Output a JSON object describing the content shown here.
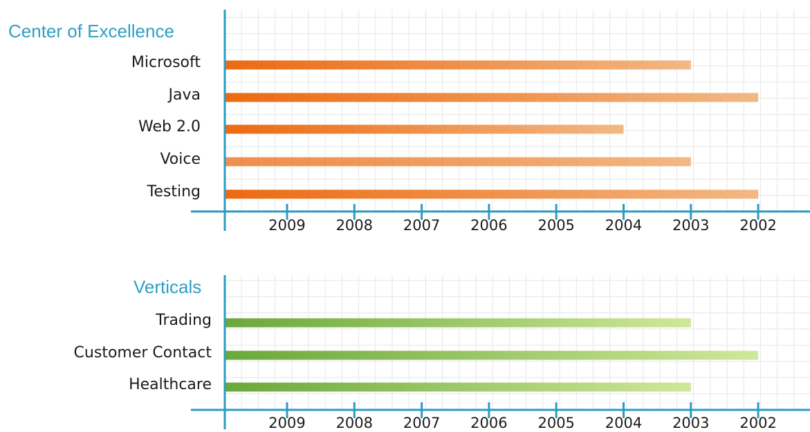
{
  "colors": {
    "axis": "#2a9bc4",
    "grid": "#e6e6e6",
    "title": "#2e9fc4",
    "orange_dark": "#ec6a12",
    "orange_light": "#f3b884",
    "green_dark": "#6aa83a",
    "green_light": "#cfe89a"
  },
  "chart_data": [
    {
      "type": "bar",
      "orientation": "horizontal",
      "title": "Center of Excellence",
      "x_axis_ticks": [
        "2009",
        "2008",
        "2007",
        "2006",
        "2005",
        "2004",
        "2003",
        "2002"
      ],
      "x_axis_direction": "reversed",
      "grid": true,
      "categories": [
        "Microsoft",
        "Java",
        "Web 2.0",
        "Voice",
        "Testing"
      ],
      "values": [
        2003,
        2002,
        2004,
        2003,
        2002
      ],
      "gradient_starts": [
        "2009",
        "2009",
        "2009",
        "2006",
        "2009"
      ]
    },
    {
      "type": "bar",
      "orientation": "horizontal",
      "title": "Verticals",
      "x_axis_ticks": [
        "2009",
        "2008",
        "2007",
        "2006",
        "2005",
        "2004",
        "2003",
        "2002"
      ],
      "x_axis_direction": "reversed",
      "grid": true,
      "categories": [
        "Trading",
        "Customer Contact",
        "Healthcare"
      ],
      "values": [
        2003,
        2002,
        2003
      ],
      "gradient_starts": [
        "2009",
        "2009",
        "2009"
      ]
    }
  ]
}
